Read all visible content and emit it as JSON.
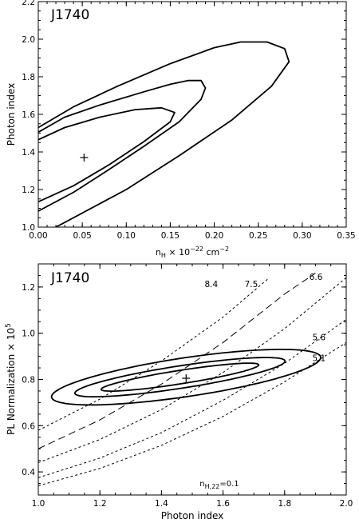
{
  "chart_data": [
    {
      "type": "contour",
      "panel_label": "J1740",
      "xlabel_base": "n",
      "xlabel_sub": "H",
      "xlabel_mid": " × 10",
      "xlabel_sup": "−22",
      "xlabel_unit": " cm",
      "xlabel_unit_sup": "−2",
      "ylabel": "Photon index",
      "xlim": [
        0.0,
        0.35
      ],
      "ylim": [
        1.0,
        2.2
      ],
      "xticks": [
        "0.00",
        "0.05",
        "0.10",
        "0.15",
        "0.20",
        "0.25",
        "0.30",
        "0.35"
      ],
      "yticks": [
        "1.0",
        "1.2",
        "1.4",
        "1.6",
        "1.8",
        "2.0",
        "2.2"
      ],
      "best_fit": {
        "x": 0.052,
        "y": 1.37
      },
      "contours": [
        {
          "level": "inner",
          "points": [
            [
              0.0,
              1.465
            ],
            [
              0.03,
              1.53
            ],
            [
              0.07,
              1.585
            ],
            [
              0.11,
              1.625
            ],
            [
              0.14,
              1.635
            ],
            [
              0.155,
              1.61
            ],
            [
              0.15,
              1.56
            ],
            [
              0.12,
              1.455
            ],
            [
              0.08,
              1.33
            ],
            [
              0.04,
              1.22
            ],
            [
              0.0,
              1.135
            ]
          ]
        },
        {
          "level": "middle",
          "points": [
            [
              0.0,
              1.505
            ],
            [
              0.03,
              1.585
            ],
            [
              0.07,
              1.65
            ],
            [
              0.12,
              1.72
            ],
            [
              0.15,
              1.76
            ],
            [
              0.17,
              1.78
            ],
            [
              0.185,
              1.78
            ],
            [
              0.19,
              1.74
            ],
            [
              0.185,
              1.68
            ],
            [
              0.16,
              1.56
            ],
            [
              0.12,
              1.43
            ],
            [
              0.08,
              1.305
            ],
            [
              0.04,
              1.185
            ],
            [
              0.0,
              1.085
            ]
          ]
        },
        {
          "level": "outer",
          "points": [
            [
              0.0,
              1.53
            ],
            [
              0.04,
              1.64
            ],
            [
              0.09,
              1.75
            ],
            [
              0.15,
              1.87
            ],
            [
              0.2,
              1.955
            ],
            [
              0.23,
              1.985
            ],
            [
              0.26,
              1.985
            ],
            [
              0.28,
              1.95
            ],
            [
              0.285,
              1.88
            ],
            [
              0.265,
              1.75
            ],
            [
              0.22,
              1.57
            ],
            [
              0.16,
              1.38
            ],
            [
              0.1,
              1.2
            ],
            [
              0.05,
              1.075
            ],
            [
              0.02,
              1.0
            ]
          ]
        }
      ]
    },
    {
      "type": "contour",
      "panel_label": "J1740",
      "xlabel": "Photon index",
      "ylabel_base": "PL Normalization × 10",
      "ylabel_sup": "5",
      "xlim": [
        1.0,
        2.0
      ],
      "ylim": [
        0.3,
        1.3
      ],
      "xticks": [
        "1.0",
        "1.2",
        "1.4",
        "1.6",
        "1.8",
        "2.0"
      ],
      "yticks": [
        "0.4",
        "0.6",
        "0.8",
        "1.0",
        "1.2"
      ],
      "best_fit": {
        "x": 1.48,
        "y": 0.805
      },
      "annotation_base": "n",
      "annotation_sub": "H,22",
      "annotation_rest": "=0.1",
      "contours": [
        {
          "level": "inner",
          "center": [
            1.46,
            0.81
          ],
          "semi_major": 0.27,
          "semi_minor": 0.045,
          "angle_deg": 19
        },
        {
          "level": "middle",
          "center": [
            1.46,
            0.81
          ],
          "semi_major": 0.36,
          "semi_minor": 0.075,
          "angle_deg": 19
        },
        {
          "level": "outer",
          "center": [
            1.48,
            0.81
          ],
          "semi_major": 0.46,
          "semi_minor": 0.13,
          "angle_deg": 19
        }
      ],
      "flux_lines": [
        {
          "label": "8.4",
          "style": "dotted",
          "points": [
            [
              1.0,
              0.58
            ],
            [
              1.2,
              0.715
            ],
            [
              1.4,
              0.88
            ],
            [
              1.6,
              1.07
            ],
            [
              1.75,
              1.24
            ]
          ],
          "label_at": [
            1.54,
            1.2
          ]
        },
        {
          "label": "7.5",
          "style": "dashed",
          "points": [
            [
              1.0,
              0.5
            ],
            [
              1.2,
              0.625
            ],
            [
              1.4,
              0.78
            ],
            [
              1.6,
              0.96
            ],
            [
              1.8,
              1.17
            ],
            [
              1.9,
              1.26
            ]
          ],
          "label_at": [
            1.67,
            1.2
          ]
        },
        {
          "label": "6.6",
          "style": "dotted",
          "points": [
            [
              1.0,
              0.44
            ],
            [
              1.2,
              0.54
            ],
            [
              1.4,
              0.67
            ],
            [
              1.6,
              0.83
            ],
            [
              1.8,
              1.02
            ],
            [
              2.0,
              1.24
            ]
          ],
          "label_at": [
            1.88,
            1.23
          ]
        },
        {
          "label": "5.6",
          "style": "dotted",
          "points": [
            [
              1.0,
              0.375
            ],
            [
              1.2,
              0.46
            ],
            [
              1.4,
              0.57
            ],
            [
              1.6,
              0.71
            ],
            [
              1.8,
              0.87
            ],
            [
              2.0,
              1.06
            ]
          ],
          "label_at": [
            1.89,
            0.97
          ]
        },
        {
          "label": "5.1",
          "style": "dotted",
          "points": [
            [
              1.0,
              0.34
            ],
            [
              1.2,
              0.415
            ],
            [
              1.4,
              0.515
            ],
            [
              1.6,
              0.64
            ],
            [
              1.8,
              0.79
            ],
            [
              2.0,
              0.96
            ]
          ],
          "label_at": [
            1.89,
            0.88
          ]
        }
      ]
    }
  ]
}
